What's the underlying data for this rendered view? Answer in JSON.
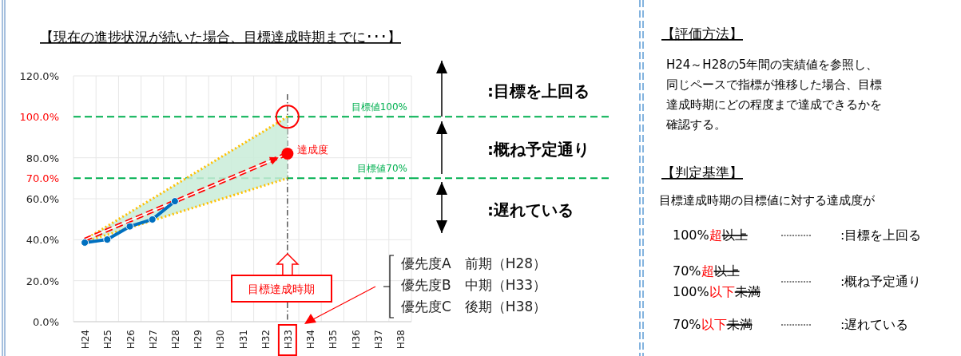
{
  "chart_data": {
    "type": "line",
    "title": "【現在の進捗状況が続いた場合、目標達成時期までに･･･】",
    "categories": [
      "H24",
      "H25",
      "H26",
      "H27",
      "H28",
      "H29",
      "H30",
      "H31",
      "H32",
      "H33",
      "H34",
      "H35",
      "H36",
      "H37",
      "H38"
    ],
    "ylim": [
      0,
      120
    ],
    "yticks": [
      {
        "value": 0,
        "label": "0.0%"
      },
      {
        "value": 20,
        "label": "20.0%"
      },
      {
        "value": 40,
        "label": "40.0%"
      },
      {
        "value": 60,
        "label": "60.0%"
      },
      {
        "value": 70,
        "label": "70.0%"
      },
      {
        "value": 80,
        "label": "80.0%"
      },
      {
        "value": 100,
        "label": "100.0%"
      },
      {
        "value": 120,
        "label": "120.0%"
      }
    ],
    "grid": true,
    "series": [
      {
        "color": "#0070c0",
        "marker": "circle",
        "values": [
          38.6,
          40.1,
          46.5,
          49.9,
          58.8,
          null,
          null,
          null,
          null,
          null,
          null,
          null,
          null,
          null,
          null
        ]
      },
      {
        "type": "line",
        "color": "#ffc000",
        "line_style": "dotted",
        "x": [
          "H24",
          "H33"
        ],
        "values": [
          40,
          100
        ]
      },
      {
        "type": "line",
        "color": "#ffc000",
        "line_style": "dotted",
        "x": [
          "H24",
          "H33"
        ],
        "values": [
          39,
          70
        ]
      },
      {
        "type": "line",
        "color": "#ff0000",
        "line_style": "dashed",
        "marker": "none",
        "x": [
          "H24",
          "H33"
        ],
        "values": [
          40,
          82
        ],
        "lower": [
          39,
          70
        ],
        "upper": [
          40,
          100
        ]
      },
      {
        "type": "scatter",
        "name": "達成度",
        "color": "#ff0000",
        "marker": "circle",
        "x": [
          "H33"
        ],
        "values": [
          82
        ]
      }
    ],
    "ref_lines": [
      {
        "axis": "y",
        "value": 100,
        "label": "目標値100%",
        "color": "#00b050",
        "line_style": "dashed"
      },
      {
        "axis": "y",
        "value": 70,
        "label": "目標値70%",
        "color": "#00b050",
        "line_style": "dashed"
      },
      {
        "axis": "x",
        "value": "H33",
        "label": null,
        "color": "#000000",
        "line_style": "dashed"
      }
    ],
    "annotations": [
      "【評価方法】",
      "H24～H28の5年間の実績値を参照し、",
      "同じペースで指標が推移した場合、目標",
      "達成時期にどの程度まで達成できるかを",
      "確認する。",
      "【判定基準】",
      "目標達成時期の目標値に対する達成度が",
      "100%",
      "超",
      "以上",
      ":目標を上回る",
      "70%",
      "超",
      "以上",
      "100%",
      "以下",
      "未満",
      ":概ね予定通り",
      "70%",
      "以下",
      "未満",
      ":遅れている",
      ":目標を上回る",
      ":概ね予定通り",
      ":遅れている",
      {
        "text": "目標達成時期",
        "x": "H33"
      },
      "優先度A　前期（H28）",
      "優先度B　中期（H33）",
      "優先度C　後期（H38）"
    ]
  }
}
